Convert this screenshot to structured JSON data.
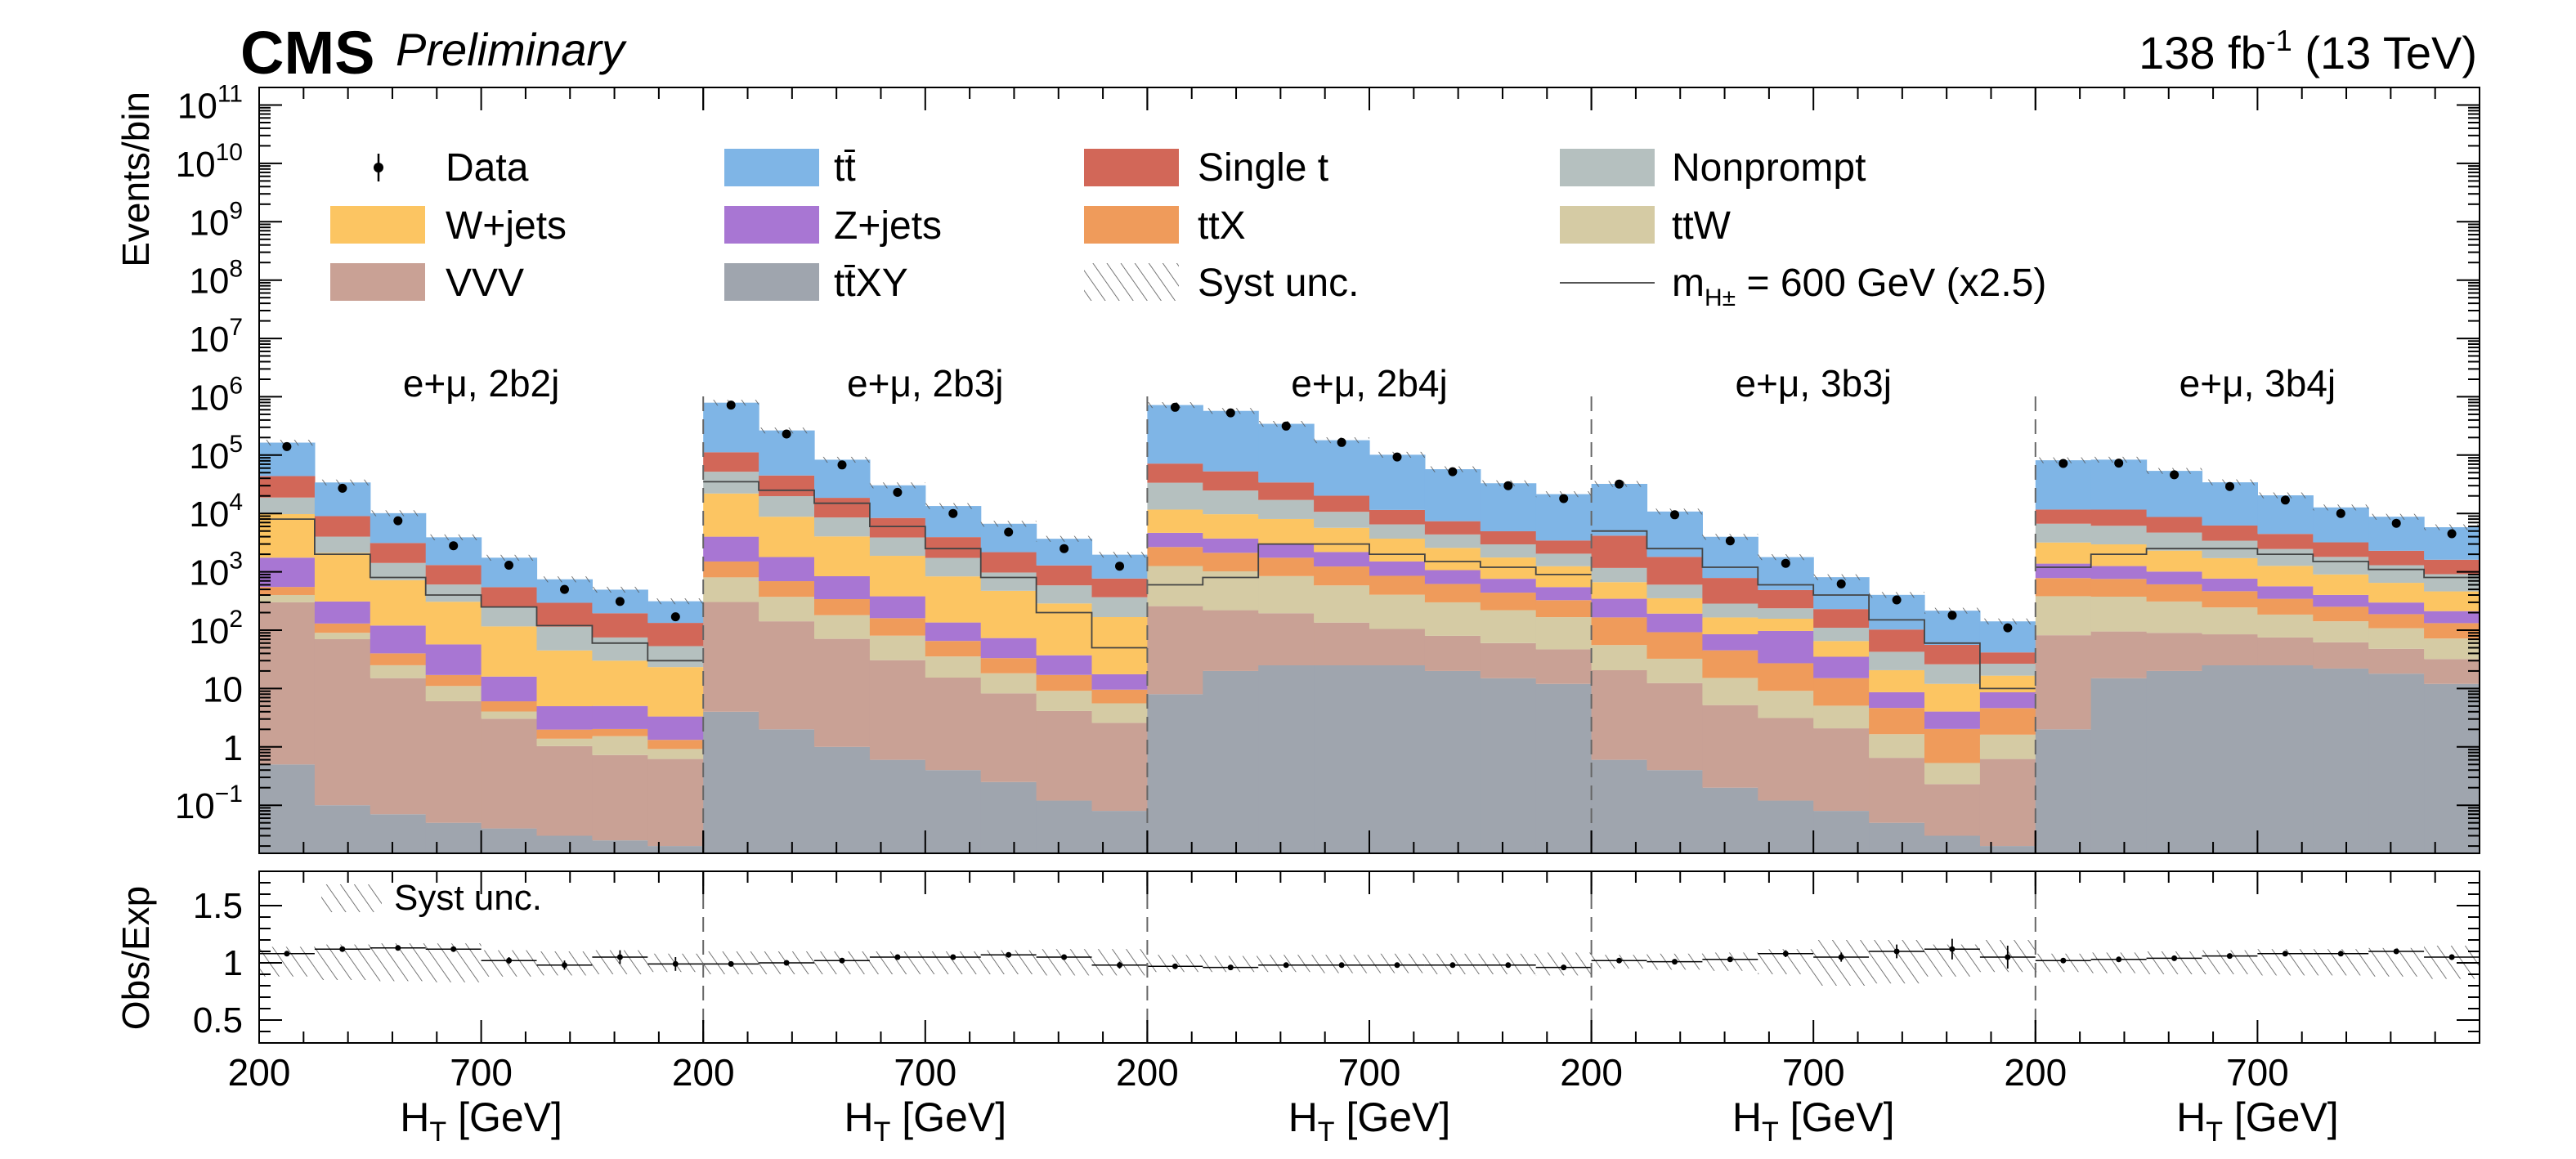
{
  "header": {
    "experiment": "CMS",
    "status": "Preliminary",
    "lumi_value": "138 fb",
    "lumi_exponent": "-1",
    "energy": "(13 TeV)"
  },
  "chart_data": {
    "type": "bar",
    "stacked": true,
    "title": "",
    "ylabel": "Events/bin",
    "ratio_ylabel": "Obs/Exp",
    "ylim_log": [
      0.015,
      200000000000
    ],
    "ratio_ylim": [
      0.3,
      1.8
    ],
    "ytick_labels": [
      {
        "v": 0.1,
        "b": "10",
        "e": "−1"
      },
      {
        "v": 1,
        "b": "1",
        "e": ""
      },
      {
        "v": 10,
        "b": "10",
        "e": ""
      },
      {
        "v": 100,
        "b": "10",
        "e": "2"
      },
      {
        "v": 1000,
        "b": "10",
        "e": "3"
      },
      {
        "v": 10000,
        "b": "10",
        "e": "4"
      },
      {
        "v": 100000,
        "b": "10",
        "e": "5"
      },
      {
        "v": 1000000,
        "b": "10",
        "e": "6"
      },
      {
        "v": 10000000,
        "b": "10",
        "e": "7"
      },
      {
        "v": 100000000,
        "b": "10",
        "e": "8"
      },
      {
        "v": 1000000000,
        "b": "10",
        "e": "9"
      },
      {
        "v": 10000000000,
        "b": "10",
        "e": "10"
      },
      {
        "v": 100000000000,
        "b": "10",
        "e": "11"
      }
    ],
    "ratio_ticks": [
      0.5,
      1,
      1.5
    ],
    "ratio_tick_labels": [
      "0.5",
      "1",
      "1.5"
    ],
    "x_per_region": {
      "range": [
        200,
        1200
      ],
      "tick_values": [
        200,
        700
      ],
      "tick_labels": [
        "200",
        "700"
      ],
      "label_main": "H",
      "label_sub": "T",
      "label_unit": " [GeV]"
    },
    "legend": {
      "data": "Data",
      "ttbar": "tt̄",
      "single_t": "Single t",
      "nonprompt": "Nonprompt",
      "wjets": "W+jets",
      "zjets": "Z+jets",
      "ttx": "ttX",
      "ttw": "ttW",
      "vvv": "VVV",
      "ttxy": "tt̄XY",
      "syst": "Syst unc.",
      "signal_main": "m",
      "signal_sub": "H±",
      "signal_rest": " = 600 GeV (x2.5)",
      "ratio_syst": "Syst unc."
    },
    "colors": {
      "ttbar": "#7fb5e6",
      "single_t": "#d26758",
      "nonprompt": "#b5c0bf",
      "wjets": "#fcc562",
      "zjets": "#a876d3",
      "ttx": "#ef9b5b",
      "ttw": "#d5cba4",
      "vvv": "#c9a195",
      "ttxy": "#9fa5ae"
    },
    "stack_order": [
      "ttxy",
      "vvv",
      "ttw",
      "ttx",
      "zjets",
      "wjets",
      "nonprompt",
      "single_t",
      "ttbar"
    ],
    "regions": [
      {
        "label": "e+μ, 2b2j",
        "series": {
          "ttxy": [
            0.5,
            0.1,
            0.07,
            0.05,
            0.04,
            0.03,
            0.025,
            0.02
          ],
          "vvv": [
            300,
            70,
            15,
            6,
            3,
            1,
            0.7,
            0.6
          ],
          "ttw": [
            100,
            20,
            10,
            5,
            1,
            0.35,
            0.8,
            0.3
          ],
          "ttx": [
            150,
            40,
            15,
            6,
            2,
            0.6,
            0.5,
            0.4
          ],
          "zjets": [
            1200,
            180,
            80,
            40,
            10,
            3,
            3,
            2
          ],
          "wjets": [
            8000,
            1800,
            600,
            250,
            100,
            40,
            25,
            20
          ],
          "nonprompt": [
            9000,
            1900,
            700,
            300,
            130,
            70,
            45,
            30
          ],
          "single_t": [
            25000,
            5000,
            1700,
            700,
            300,
            180,
            120,
            80
          ],
          "ttbar": [
            120000,
            25000,
            7000,
            2600,
            1200,
            450,
            300,
            180
          ]
        },
        "data": [
          140000,
          27000,
          7500,
          2800,
          1300,
          500,
          310,
          170
        ],
        "signal": [
          8000,
          2000,
          800,
          400,
          250,
          120,
          60,
          30
        ],
        "ratio": [
          1.08,
          1.12,
          1.13,
          1.12,
          1.02,
          0.98,
          1.05,
          0.99
        ],
        "ratio_err": [
          0.01,
          0.01,
          0.02,
          0.02,
          0.03,
          0.04,
          0.06,
          0.06
        ],
        "syst_up": [
          1.14,
          1.16,
          1.17,
          1.17,
          1.11,
          1.1,
          1.11,
          1.08
        ],
        "syst_dn": [
          0.88,
          0.85,
          0.84,
          0.83,
          0.88,
          0.89,
          0.9,
          0.92
        ]
      },
      {
        "label": "e+μ, 2b3j",
        "series": {
          "ttxy": [
            4,
            2,
            1,
            0.6,
            0.4,
            0.25,
            0.12,
            0.08
          ],
          "vvv": [
            300,
            140,
            70,
            30,
            15,
            8,
            4,
            2.5
          ],
          "ttw": [
            500,
            230,
            110,
            50,
            20,
            10,
            5,
            3
          ],
          "ttx": [
            700,
            320,
            160,
            80,
            30,
            15,
            8,
            4
          ],
          "zjets": [
            2500,
            1100,
            500,
            220,
            70,
            40,
            20,
            8
          ],
          "wjets": [
            18000,
            7000,
            3200,
            1500,
            700,
            400,
            250,
            150
          ],
          "nonprompt": [
            30000,
            11000,
            4500,
            2000,
            900,
            500,
            300,
            200
          ],
          "single_t": [
            60000,
            25000,
            10000,
            4500,
            2200,
            1200,
            700,
            400
          ],
          "ttbar": [
            680000,
            220000,
            65000,
            22000,
            9500,
            4500,
            2400,
            1200
          ]
        },
        "data": [
          720000,
          230000,
          68000,
          23000,
          10000,
          4800,
          2500,
          1250
        ],
        "signal": [
          35000,
          25000,
          15000,
          6000,
          2500,
          800,
          200,
          50
        ],
        "ratio": [
          0.99,
          1.0,
          1.02,
          1.05,
          1.05,
          1.07,
          1.05,
          0.98
        ],
        "ratio_err": [
          0.005,
          0.005,
          0.005,
          0.01,
          0.01,
          0.015,
          0.02,
          0.03
        ],
        "syst_up": [
          1.1,
          1.1,
          1.1,
          1.1,
          1.1,
          1.11,
          1.12,
          1.12
        ],
        "syst_dn": [
          0.9,
          0.9,
          0.9,
          0.9,
          0.9,
          0.9,
          0.89,
          0.89
        ]
      },
      {
        "label": "e+μ, 2b4j",
        "series": {
          "ttxy": [
            8,
            20,
            25,
            25,
            25,
            20,
            15,
            12
          ],
          "vvv": [
            250,
            200,
            170,
            110,
            80,
            60,
            45,
            35
          ],
          "ttw": [
            1000,
            800,
            650,
            450,
            300,
            220,
            160,
            120
          ],
          "ttx": [
            1400,
            1100,
            900,
            650,
            450,
            320,
            220,
            160
          ],
          "zjets": [
            2000,
            1600,
            1300,
            950,
            650,
            450,
            320,
            220
          ],
          "wjets": [
            7000,
            6000,
            5000,
            3500,
            2200,
            1500,
            1000,
            700
          ],
          "nonprompt": [
            22000,
            15000,
            9000,
            5000,
            2800,
            1800,
            1200,
            800
          ],
          "single_t": [
            38000,
            28000,
            17000,
            9500,
            5000,
            3000,
            2000,
            1400
          ],
          "ttbar": [
            650000,
            520000,
            310000,
            160000,
            90000,
            50000,
            28000,
            18000
          ]
        },
        "data": [
          660000,
          530000,
          315000,
          165000,
          93000,
          52000,
          30000,
          18000
        ],
        "signal": [
          600,
          800,
          3000,
          3000,
          2000,
          1500,
          1200,
          900
        ],
        "ratio": [
          0.97,
          0.96,
          0.98,
          0.98,
          0.98,
          0.98,
          0.98,
          0.96
        ],
        "ratio_err": [
          0.004,
          0.004,
          0.005,
          0.006,
          0.008,
          0.01,
          0.012,
          0.015
        ],
        "syst_up": [
          1.07,
          1.06,
          1.07,
          1.07,
          1.08,
          1.08,
          1.08,
          1.09
        ],
        "syst_dn": [
          0.92,
          0.92,
          0.92,
          0.91,
          0.91,
          0.9,
          0.9,
          0.89
        ]
      },
      {
        "label": "e+μ, 3b3j",
        "series": {
          "ttxy": [
            0.6,
            0.4,
            0.2,
            0.12,
            0.08,
            0.05,
            0.03,
            0.02
          ],
          "vvv": [
            20,
            12,
            5,
            3,
            2,
            0.6,
            0.2,
            0.6
          ],
          "ttw": [
            35,
            20,
            10,
            6,
            3,
            1,
            0.3,
            1
          ],
          "ttx": [
            110,
            60,
            30,
            18,
            10,
            3,
            1.5,
            3
          ],
          "zjets": [
            180,
            100,
            40,
            70,
            20,
            4,
            2,
            4
          ],
          "wjets": [
            320,
            160,
            80,
            60,
            30,
            12,
            8,
            8
          ],
          "nonprompt": [
            500,
            250,
            120,
            80,
            45,
            22,
            14,
            10
          ],
          "single_t": [
            3000,
            1200,
            500,
            250,
            120,
            60,
            30,
            15
          ],
          "ttbar": [
            28000,
            9000,
            3200,
            1300,
            580,
            300,
            160,
            100
          ]
        },
        "data": [
          32000,
          9500,
          3400,
          1400,
          620,
          330,
          180,
          110
        ],
        "signal": [
          5000,
          2500,
          1200,
          600,
          400,
          150,
          60,
          10
        ],
        "ratio": [
          1.02,
          1.01,
          1.03,
          1.08,
          1.05,
          1.1,
          1.12,
          1.05
        ],
        "ratio_err": [
          0.01,
          0.01,
          0.02,
          0.03,
          0.04,
          0.06,
          0.09,
          0.1
        ],
        "syst_up": [
          1.07,
          1.08,
          1.09,
          1.12,
          1.2,
          1.2,
          1.16,
          1.2
        ],
        "syst_dn": [
          0.95,
          0.94,
          0.93,
          0.9,
          0.8,
          0.82,
          0.88,
          0.92
        ]
      },
      {
        "label": "e+μ, 3b4j",
        "series": {
          "ttxy": [
            2,
            15,
            20,
            25,
            25,
            22,
            18,
            12
          ],
          "vvv": [
            80,
            80,
            70,
            60,
            50,
            40,
            30,
            20
          ],
          "ttw": [
            300,
            280,
            220,
            160,
            110,
            80,
            60,
            40
          ],
          "ttx": [
            400,
            380,
            300,
            220,
            160,
            110,
            80,
            60
          ],
          "zjets": [
            600,
            500,
            400,
            300,
            220,
            150,
            110,
            80
          ],
          "wjets": [
            1800,
            1700,
            1300,
            950,
            700,
            500,
            350,
            250
          ],
          "nonprompt": [
            3500,
            3200,
            2400,
            1700,
            1200,
            900,
            650,
            450
          ],
          "single_t": [
            5000,
            5500,
            4000,
            2800,
            2000,
            1400,
            1000,
            700
          ],
          "ttbar": [
            70000,
            72000,
            45000,
            28000,
            16000,
            9500,
            6500,
            4200
          ]
        },
        "data": [
          72000,
          73000,
          46000,
          29000,
          17000,
          10000,
          6800,
          4500
        ],
        "signal": [
          1200,
          2000,
          2500,
          2500,
          2000,
          1500,
          1100,
          800
        ],
        "ratio": [
          1.02,
          1.03,
          1.04,
          1.06,
          1.08,
          1.08,
          1.1,
          1.05
        ],
        "ratio_err": [
          0.006,
          0.006,
          0.008,
          0.01,
          0.012,
          0.015,
          0.02,
          0.025
        ],
        "syst_up": [
          1.08,
          1.09,
          1.1,
          1.11,
          1.12,
          1.12,
          1.13,
          1.15
        ],
        "syst_dn": [
          0.92,
          0.91,
          0.9,
          0.9,
          0.89,
          0.89,
          0.88,
          0.86
        ]
      }
    ]
  }
}
